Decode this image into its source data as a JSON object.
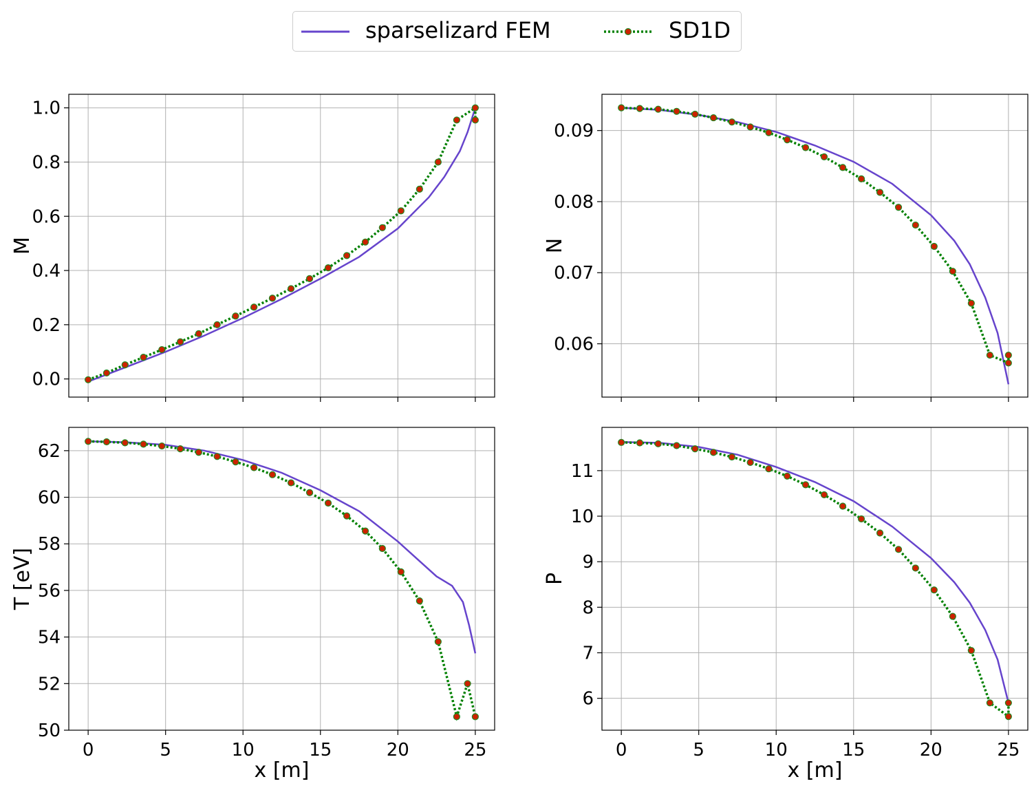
{
  "legend": {
    "fem_label": "sparselizard FEM",
    "sd1d_label": "SD1D"
  },
  "colors": {
    "fem": "#6644cc",
    "sd1d_line": "#008000",
    "sd1d_marker_face": "#cc2200",
    "sd1d_marker_edge": "#228822",
    "grid": "#b0b0b0"
  },
  "chart_data": [
    {
      "id": "M",
      "type": "line",
      "ylabel": "M",
      "xlabel": "",
      "xlim": [
        -1.25,
        26.25
      ],
      "ylim": [
        -0.067,
        1.05
      ],
      "yticks": [
        0.0,
        0.2,
        0.4,
        0.6,
        0.8,
        1.0
      ],
      "ytick_labels": [
        "0.0",
        "0.2",
        "0.4",
        "0.6",
        "0.8",
        "1.0"
      ],
      "xticks": [
        0,
        5,
        10,
        15,
        20,
        25
      ],
      "xtick_labels": [],
      "grid": true,
      "series": [
        {
          "name": "sparselizard FEM",
          "style": "solid",
          "x": [
            0,
            2.5,
            5,
            7.5,
            10,
            12.5,
            15,
            17.5,
            20,
            22,
            23,
            24,
            24.5,
            25
          ],
          "y": [
            -0.01,
            0.045,
            0.1,
            0.16,
            0.225,
            0.295,
            0.37,
            0.45,
            0.555,
            0.67,
            0.745,
            0.84,
            0.91,
            1.0
          ]
        },
        {
          "name": "SD1D",
          "style": "dotted",
          "x": [
            0,
            1.19,
            2.38,
            3.57,
            4.76,
            5.95,
            7.14,
            8.33,
            9.52,
            10.71,
            11.9,
            13.1,
            14.3,
            15.5,
            16.7,
            17.9,
            19.0,
            20.2,
            21.4,
            22.6,
            23.8,
            25.0,
            25.0
          ],
          "y": [
            -0.003,
            0.022,
            0.052,
            0.08,
            0.108,
            0.137,
            0.167,
            0.2,
            0.232,
            0.265,
            0.298,
            0.333,
            0.37,
            0.41,
            0.455,
            0.505,
            0.558,
            0.62,
            0.7,
            0.8,
            0.955,
            1.0,
            0.955
          ]
        }
      ]
    },
    {
      "id": "N",
      "type": "line",
      "ylabel": "N",
      "xlabel": "",
      "xlim": [
        -1.25,
        26.25
      ],
      "ylim": [
        0.0525,
        0.0951
      ],
      "yticks": [
        0.06,
        0.07,
        0.08,
        0.09
      ],
      "ytick_labels": [
        "0.06",
        "0.07",
        "0.08",
        "0.09"
      ],
      "xticks": [
        0,
        5,
        10,
        15,
        20,
        25
      ],
      "xtick_labels": [],
      "grid": true,
      "series": [
        {
          "name": "sparselizard FEM",
          "style": "solid",
          "x": [
            0,
            2.5,
            5,
            7.5,
            10,
            12.5,
            15,
            17.5,
            20,
            21.5,
            22.5,
            23.5,
            24.3,
            25
          ],
          "y": [
            0.0932,
            0.0929,
            0.0922,
            0.0912,
            0.0898,
            0.0879,
            0.0856,
            0.0825,
            0.0781,
            0.0745,
            0.0712,
            0.0665,
            0.0615,
            0.0543
          ]
        },
        {
          "name": "SD1D",
          "style": "dotted",
          "x": [
            0,
            1.19,
            2.38,
            3.57,
            4.76,
            5.95,
            7.14,
            8.33,
            9.52,
            10.71,
            11.9,
            13.1,
            14.3,
            15.5,
            16.7,
            17.9,
            19.0,
            20.2,
            21.4,
            22.6,
            23.8,
            25.0,
            25.0
          ],
          "y": [
            0.0932,
            0.0931,
            0.093,
            0.0927,
            0.0923,
            0.0918,
            0.0912,
            0.0905,
            0.0897,
            0.0887,
            0.0876,
            0.0863,
            0.0848,
            0.0832,
            0.0813,
            0.0792,
            0.0767,
            0.0737,
            0.0702,
            0.0657,
            0.0584,
            0.0573,
            0.0584
          ]
        }
      ]
    },
    {
      "id": "T",
      "type": "line",
      "ylabel": "T [eV]",
      "xlabel": "x [m]",
      "xlim": [
        -1.25,
        26.25
      ],
      "ylim": [
        50.0,
        63.0
      ],
      "yticks": [
        50,
        52,
        54,
        56,
        58,
        60,
        62
      ],
      "ytick_labels": [
        "50",
        "52",
        "54",
        "56",
        "58",
        "60",
        "62"
      ],
      "xticks": [
        0,
        5,
        10,
        15,
        20,
        25
      ],
      "xtick_labels": [
        "0",
        "5",
        "10",
        "15",
        "20",
        "25"
      ],
      "grid": true,
      "series": [
        {
          "name": "sparselizard FEM",
          "style": "solid",
          "x": [
            0,
            2.5,
            5,
            7.5,
            10,
            12.5,
            15,
            17.5,
            20,
            21.5,
            22.5,
            23.5,
            24.2,
            24.6,
            25
          ],
          "y": [
            62.4,
            62.36,
            62.25,
            62.0,
            61.6,
            61.05,
            60.3,
            59.4,
            58.1,
            57.2,
            56.6,
            56.2,
            55.5,
            54.5,
            53.3
          ]
        },
        {
          "name": "SD1D",
          "style": "dotted",
          "x": [
            0,
            1.19,
            2.38,
            3.57,
            4.76,
            5.95,
            7.14,
            8.33,
            9.52,
            10.71,
            11.9,
            13.1,
            14.3,
            15.5,
            16.7,
            17.9,
            19.0,
            20.2,
            21.4,
            22.6,
            23.8,
            24.5,
            25.0
          ],
          "y": [
            62.4,
            62.38,
            62.34,
            62.28,
            62.2,
            62.08,
            61.93,
            61.75,
            61.52,
            61.27,
            60.97,
            60.62,
            60.2,
            59.75,
            59.2,
            58.55,
            57.8,
            56.8,
            55.55,
            53.8,
            50.58,
            52.0,
            50.58
          ]
        }
      ]
    },
    {
      "id": "P",
      "type": "line",
      "ylabel": "P",
      "xlabel": "x [m]",
      "xlim": [
        -1.25,
        26.25
      ],
      "ylim": [
        5.3,
        11.95
      ],
      "yticks": [
        6,
        7,
        8,
        9,
        10,
        11
      ],
      "ytick_labels": [
        "6",
        "7",
        "8",
        "9",
        "10",
        "11"
      ],
      "xticks": [
        0,
        5,
        10,
        15,
        20,
        25
      ],
      "xtick_labels": [
        "0",
        "5",
        "10",
        "15",
        "20",
        "25"
      ],
      "grid": true,
      "series": [
        {
          "name": "sparselizard FEM",
          "style": "solid",
          "x": [
            0,
            2.5,
            5,
            7.5,
            10,
            12.5,
            15,
            17.5,
            20,
            21.5,
            22.5,
            23.5,
            24.3,
            25
          ],
          "y": [
            11.63,
            11.61,
            11.52,
            11.35,
            11.08,
            10.75,
            10.33,
            9.77,
            9.08,
            8.55,
            8.1,
            7.5,
            6.85,
            5.9
          ]
        },
        {
          "name": "SD1D",
          "style": "dotted",
          "x": [
            0,
            1.19,
            2.38,
            3.57,
            4.76,
            5.95,
            7.14,
            8.33,
            9.52,
            10.71,
            11.9,
            13.1,
            14.3,
            15.5,
            16.7,
            17.9,
            19.0,
            20.2,
            21.4,
            22.6,
            23.8,
            25.0,
            25.0
          ],
          "y": [
            11.62,
            11.61,
            11.59,
            11.55,
            11.48,
            11.4,
            11.3,
            11.18,
            11.04,
            10.88,
            10.69,
            10.47,
            10.22,
            9.94,
            9.63,
            9.27,
            8.86,
            8.38,
            7.8,
            7.05,
            5.9,
            5.6,
            5.9
          ]
        }
      ]
    }
  ]
}
